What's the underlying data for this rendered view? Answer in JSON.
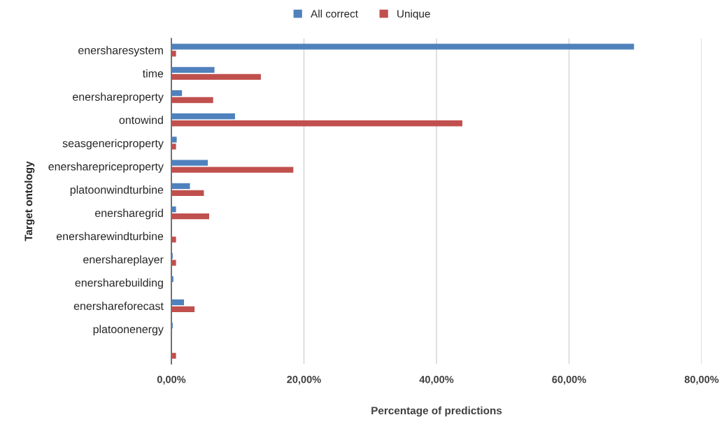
{
  "chart_data": {
    "type": "bar",
    "orientation": "horizontal",
    "xlabel": "Percentage of predictions",
    "ylabel": "Target ontology",
    "categories": [
      "enersharesystem",
      "time",
      "enershareproperty",
      "ontowind",
      "seasgenericproperty",
      "enersharepriceproperty",
      "platoonwindturbine",
      "enersharegrid",
      "enersharewindturbine",
      "enershareplayer",
      "enersharebuilding",
      "enershareforecast",
      "platoonenergy",
      null
    ],
    "series": [
      {
        "name": "All correct",
        "color": "#4f81bd",
        "values": [
          69.8,
          6.5,
          1.6,
          9.6,
          0.8,
          5.5,
          2.8,
          0.7,
          0,
          0.2,
          0.3,
          1.9,
          0.2,
          0
        ]
      },
      {
        "name": "Unique",
        "color": "#c0504d",
        "values": [
          0.7,
          13.5,
          6.3,
          43.9,
          0.7,
          18.4,
          4.9,
          5.7,
          0.7,
          0.7,
          0,
          3.5,
          0,
          0.7
        ]
      }
    ],
    "xlim": [
      0,
      80
    ],
    "xticks": [
      {
        "value": 0,
        "label": "0,00%"
      },
      {
        "value": 20,
        "label": "20,00%"
      },
      {
        "value": 40,
        "label": "40,00%"
      },
      {
        "value": 60,
        "label": "60,00%"
      },
      {
        "value": 80,
        "label": "80,00%"
      }
    ],
    "grid": "x",
    "legend": "top"
  }
}
